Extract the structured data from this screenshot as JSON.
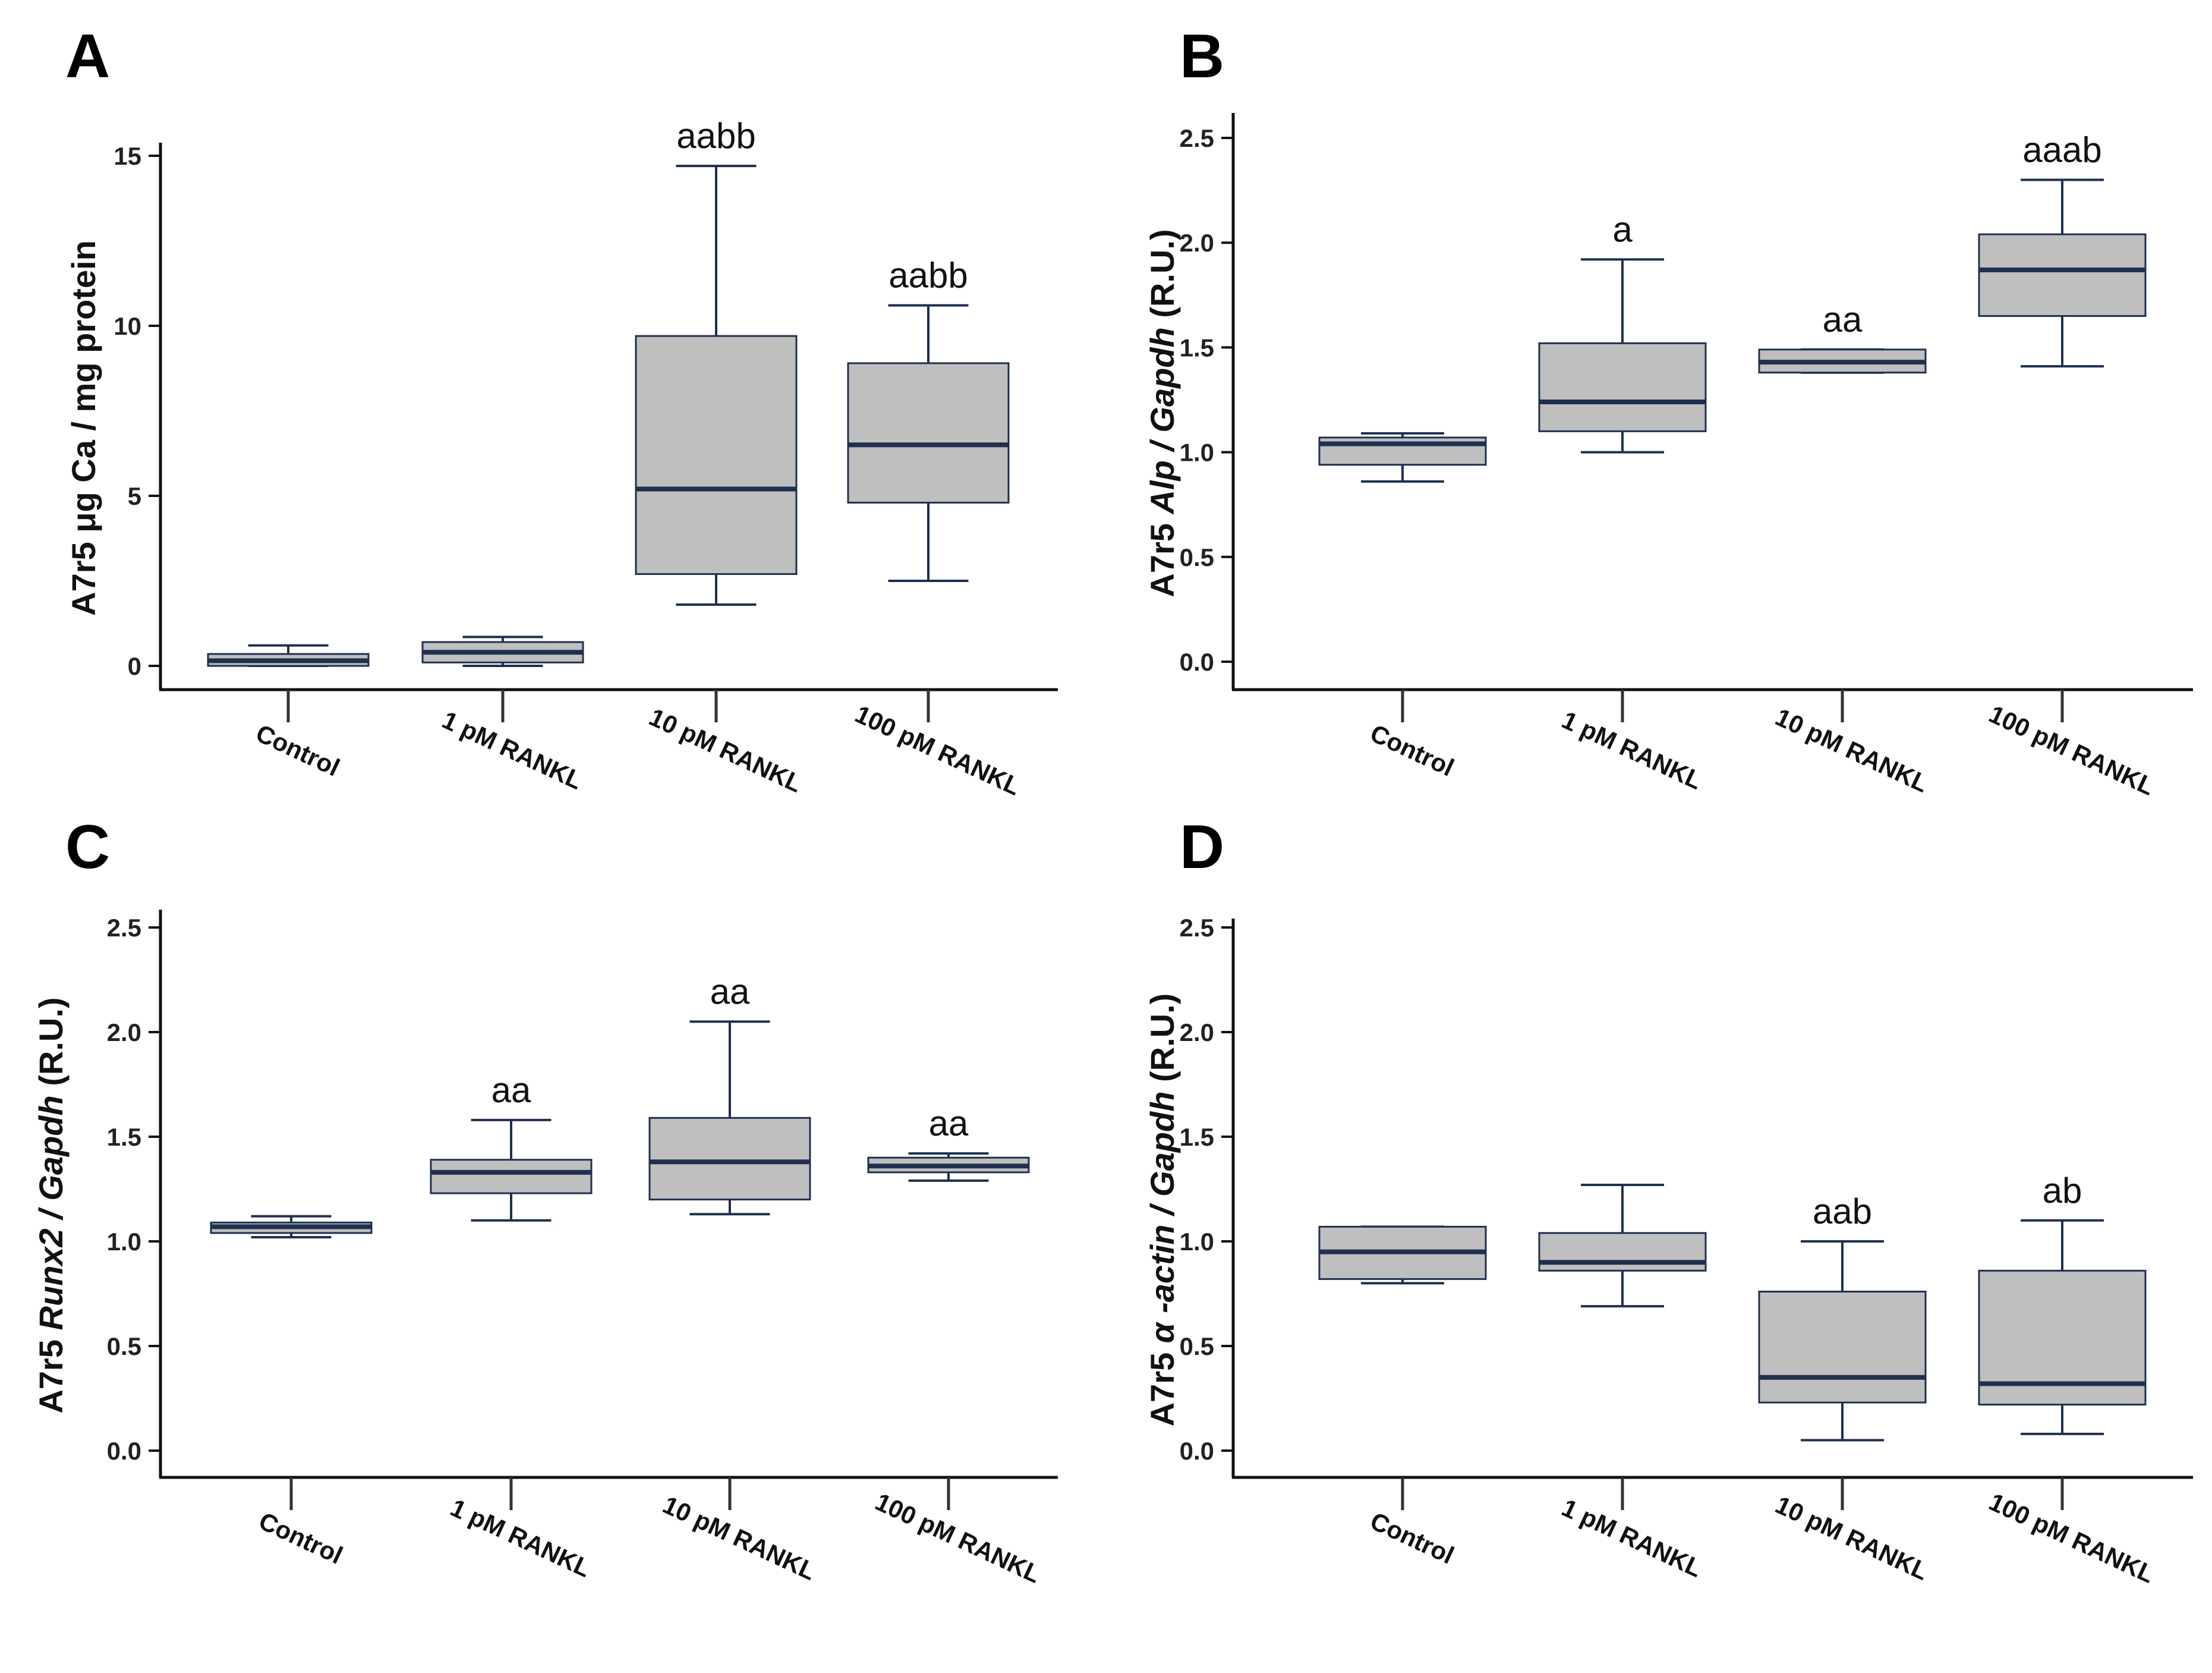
{
  "colors": {
    "box_fill": "#bfbfbf",
    "box_stroke": "#1f3050",
    "median": "#1f3050",
    "axis": "#111111"
  },
  "chart_data": [
    {
      "panel": "A",
      "type": "box",
      "categories": [
        "Control",
        "1 pM RANKL",
        "10 pM RANKL",
        "100 pM RANKL"
      ],
      "ylabel_parts": [
        {
          "text": "A7r5 μg Ca / mg protein",
          "italic": false
        }
      ],
      "ylim": [
        0,
        15
      ],
      "yticks": [
        0,
        5,
        10,
        15
      ],
      "ytick_labels": [
        "0",
        "5",
        "10",
        "15"
      ],
      "boxes": [
        {
          "min": 0.0,
          "q1": 0.0,
          "median": 0.15,
          "q3": 0.35,
          "max": 0.6
        },
        {
          "min": 0.0,
          "q1": 0.1,
          "median": 0.4,
          "q3": 0.7,
          "max": 0.85
        },
        {
          "min": 1.8,
          "q1": 2.7,
          "median": 5.2,
          "q3": 9.7,
          "max": 14.7
        },
        {
          "min": 2.5,
          "q1": 4.8,
          "median": 6.5,
          "q3": 8.9,
          "max": 10.6
        }
      ],
      "significance": [
        "",
        "",
        "aabb",
        "aabb"
      ]
    },
    {
      "panel": "B",
      "type": "box",
      "categories": [
        "Control",
        "1 pM RANKL",
        "10 pM RANKL",
        "100 pM RANKL"
      ],
      "ylabel_parts": [
        {
          "text": "A7r5 ",
          "italic": false
        },
        {
          "text": "Alp / Gapdh",
          "italic": true
        },
        {
          "text": " (R.U.)",
          "italic": false
        }
      ],
      "ylim": [
        0,
        2.5
      ],
      "yticks": [
        0,
        0.5,
        1.0,
        1.5,
        2.0,
        2.5
      ],
      "ytick_labels": [
        "0.0",
        "0.5",
        "1.0",
        "1.5",
        "2.0",
        "2.5"
      ],
      "boxes": [
        {
          "min": 0.86,
          "q1": 0.94,
          "median": 1.04,
          "q3": 1.07,
          "max": 1.09
        },
        {
          "min": 1.0,
          "q1": 1.1,
          "median": 1.24,
          "q3": 1.52,
          "max": 1.92
        },
        {
          "min": 1.38,
          "q1": 1.38,
          "median": 1.43,
          "q3": 1.49,
          "max": 1.49
        },
        {
          "min": 1.41,
          "q1": 1.65,
          "median": 1.87,
          "q3": 2.04,
          "max": 2.3
        }
      ],
      "significance": [
        "",
        "a",
        "aa",
        "aaab"
      ]
    },
    {
      "panel": "C",
      "type": "box",
      "categories": [
        "Control",
        "1 pM RANKL",
        "10 pM RANKL",
        "100 pM RANKL"
      ],
      "ylabel_parts": [
        {
          "text": "A7r5 ",
          "italic": false
        },
        {
          "text": "Runx2 / Gapdh",
          "italic": true
        },
        {
          "text": " (R.U.)",
          "italic": false
        }
      ],
      "ylim": [
        0,
        2.5
      ],
      "yticks": [
        0,
        0.5,
        1.0,
        1.5,
        2.0,
        2.5
      ],
      "ytick_labels": [
        "0.0",
        "0.5",
        "1.0",
        "1.5",
        "2.0",
        "2.5"
      ],
      "boxes": [
        {
          "min": 1.02,
          "q1": 1.04,
          "median": 1.07,
          "q3": 1.09,
          "max": 1.12
        },
        {
          "min": 1.1,
          "q1": 1.23,
          "median": 1.33,
          "q3": 1.39,
          "max": 1.58
        },
        {
          "min": 1.13,
          "q1": 1.2,
          "median": 1.38,
          "q3": 1.59,
          "max": 2.05
        },
        {
          "min": 1.29,
          "q1": 1.33,
          "median": 1.36,
          "q3": 1.4,
          "max": 1.42
        }
      ],
      "significance": [
        "",
        "aa",
        "aa",
        "aa"
      ]
    },
    {
      "panel": "D",
      "type": "box",
      "categories": [
        "Control",
        "1 pM RANKL",
        "10 pM RANKL",
        "100 pM RANKL"
      ],
      "ylabel_parts": [
        {
          "text": "A7r5  ",
          "italic": false
        },
        {
          "text": "α -actin / Gapdh",
          "italic": true
        },
        {
          "text": " (R.U.)",
          "italic": false
        }
      ],
      "ylim": [
        0,
        2.5
      ],
      "yticks": [
        0,
        0.5,
        1.0,
        1.5,
        2.0,
        2.5
      ],
      "ytick_labels": [
        "0.0",
        "0.5",
        "1.0",
        "1.5",
        "2.0",
        "2.5"
      ],
      "boxes": [
        {
          "min": 0.8,
          "q1": 0.82,
          "median": 0.95,
          "q3": 1.07,
          "max": 1.07
        },
        {
          "min": 0.69,
          "q1": 0.86,
          "median": 0.9,
          "q3": 1.04,
          "max": 1.27
        },
        {
          "min": 0.05,
          "q1": 0.23,
          "median": 0.35,
          "q3": 0.76,
          "max": 1.0
        },
        {
          "min": 0.08,
          "q1": 0.22,
          "median": 0.32,
          "q3": 0.86,
          "max": 1.1
        }
      ],
      "significance": [
        "",
        "",
        "aab",
        "ab"
      ]
    }
  ]
}
